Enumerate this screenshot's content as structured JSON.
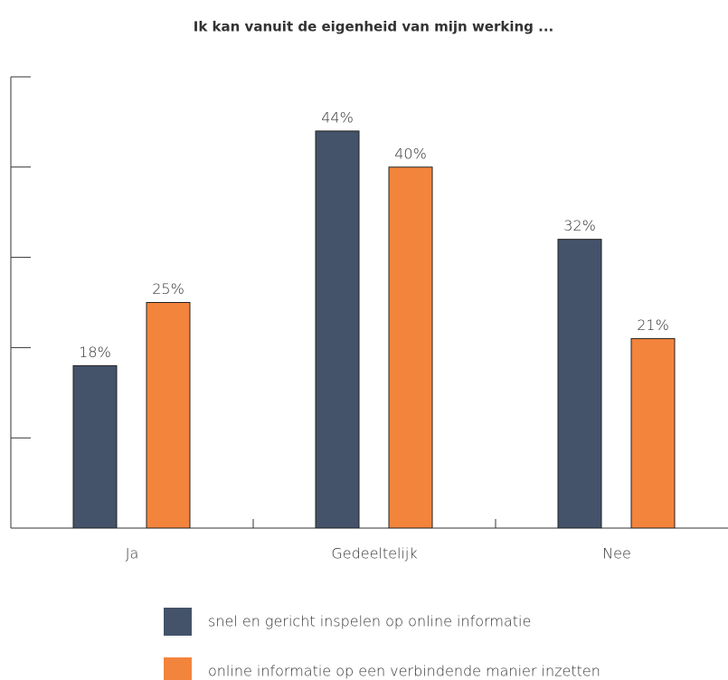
{
  "chart_data": {
    "type": "bar",
    "title": "Ik kan vanuit de eigenheid van mijn werking ...",
    "categories": [
      "Ja",
      "Gedeeltelijk",
      "Nee"
    ],
    "series": [
      {
        "name": "snel en gericht inspelen op online informatie",
        "color": "#44526a",
        "values": [
          18,
          44,
          32
        ],
        "value_labels": [
          "18%",
          "44%",
          "32%"
        ]
      },
      {
        "name": "online informatie op een verbindende manier inzetten",
        "color": "#f3843c",
        "values": [
          25,
          40,
          21
        ],
        "value_labels": [
          "25%",
          "40%",
          "21%"
        ]
      }
    ],
    "ylim": [
      0,
      50
    ],
    "yticks": [
      0,
      10,
      20,
      30,
      40,
      50
    ],
    "legend": "bottom"
  }
}
